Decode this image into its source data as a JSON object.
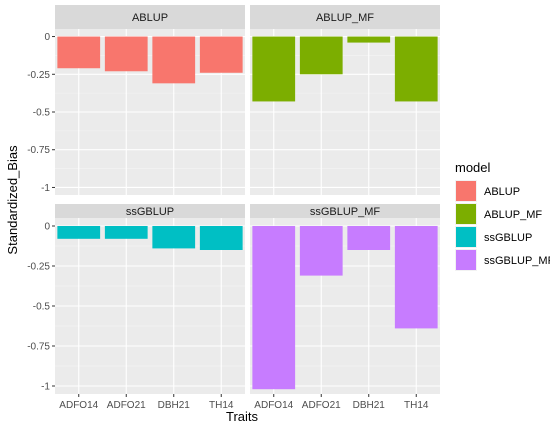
{
  "chart_data": {
    "type": "bar",
    "facet_layout": "2x2",
    "categories": [
      "ADFO14",
      "ADFO21",
      "DBH21",
      "TH14"
    ],
    "xlabel": "Traits",
    "ylabel": "Standardized_Bias",
    "ylim": [
      -1.05,
      0.05
    ],
    "yticks": [
      0,
      -0.25,
      -0.5,
      -0.75,
      -1
    ],
    "ytick_labels": [
      "0",
      "-0.25",
      "-0.5",
      "-0.75",
      "-1"
    ],
    "grid": true,
    "legend_position": "right",
    "legend_title": "model",
    "series": [
      {
        "name": "ABLUP",
        "color": "#F8766D",
        "values": [
          -0.21,
          -0.23,
          -0.31,
          -0.24
        ]
      },
      {
        "name": "ABLUP_MF",
        "color": "#7CAE00",
        "values": [
          -0.43,
          -0.25,
          -0.04,
          -0.43
        ]
      },
      {
        "name": "ssGBLUP",
        "color": "#00BFC4",
        "values": [
          -0.08,
          -0.08,
          -0.14,
          -0.15
        ]
      },
      {
        "name": "ssGBLUP_MF",
        "color": "#C77CFF",
        "values": [
          -1.02,
          -0.31,
          -0.15,
          -0.64
        ]
      }
    ]
  }
}
